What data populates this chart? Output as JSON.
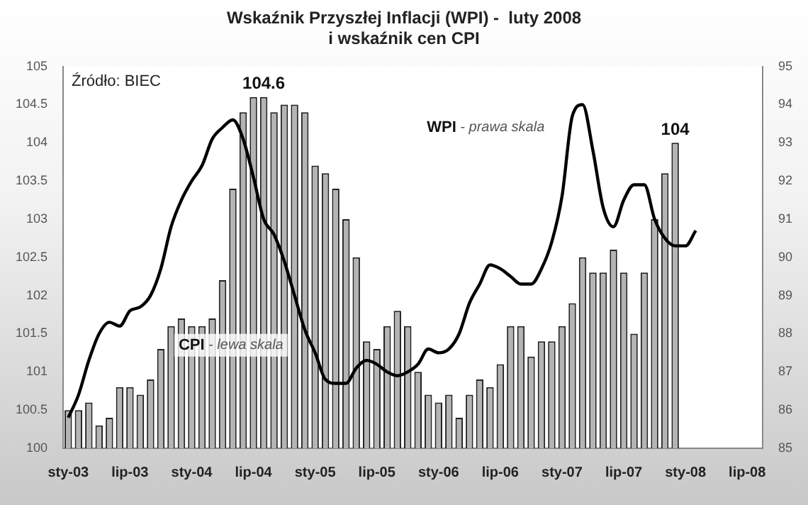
{
  "chart_data": {
    "type": "bar",
    "title": "Wskaźnik Przyszłej Inflacji (WPI) -  luty 2008\ni wskaźnik cen CPI",
    "categories": [
      "sty-03",
      null,
      null,
      null,
      null,
      null,
      "lip-03",
      null,
      null,
      null,
      null,
      null,
      "sty-04",
      null,
      null,
      null,
      null,
      null,
      "lip-04",
      null,
      null,
      null,
      null,
      null,
      "sty-05",
      null,
      null,
      null,
      null,
      null,
      "lip-05",
      null,
      null,
      null,
      null,
      null,
      "sty-06",
      null,
      null,
      null,
      null,
      null,
      "lip-06",
      null,
      null,
      null,
      null,
      null,
      "sty-07",
      null,
      null,
      null,
      null,
      null,
      "lip-07",
      null,
      null,
      null,
      null,
      null,
      "sty-08",
      null,
      null,
      null,
      null,
      null,
      "lip-08",
      null
    ],
    "series": [
      {
        "name": "CPI - lewa skala",
        "color": "#b4b4b4",
        "values": [
          100.5,
          100.5,
          100.6,
          100.3,
          100.4,
          100.8,
          100.8,
          100.7,
          100.9,
          101.3,
          101.6,
          101.7,
          101.6,
          101.6,
          101.7,
          102.2,
          103.4,
          104.4,
          104.6,
          104.6,
          104.4,
          104.5,
          104.5,
          104.4,
          103.7,
          103.6,
          103.4,
          103.0,
          102.5,
          101.4,
          101.3,
          101.6,
          101.8,
          101.6,
          101.0,
          100.7,
          100.6,
          100.7,
          100.4,
          100.7,
          100.9,
          100.8,
          101.1,
          101.6,
          101.6,
          101.2,
          101.4,
          101.4,
          101.6,
          101.9,
          102.5,
          102.3,
          102.3,
          102.6,
          102.3,
          101.5,
          102.3,
          103.0,
          103.6,
          104.0,
          null,
          null,
          null,
          null,
          null,
          null,
          null,
          null
        ],
        "value_labels": [
          null,
          null,
          null,
          null,
          null,
          null,
          null,
          null,
          null,
          null,
          null,
          null,
          null,
          null,
          null,
          null,
          null,
          null,
          null,
          "104.6",
          null,
          null,
          null,
          null,
          null,
          null,
          null,
          null,
          null,
          null,
          null,
          null,
          null,
          null,
          null,
          null,
          null,
          null,
          null,
          null,
          null,
          null,
          null,
          null,
          null,
          null,
          null,
          null,
          null,
          null,
          null,
          null,
          null,
          null,
          null,
          null,
          null,
          null,
          null,
          "104",
          null,
          null,
          null,
          null,
          null,
          null,
          null,
          null
        ]
      },
      {
        "name": "WPI - prawa skala",
        "type": "line",
        "axis": "y2",
        "color": "#000000",
        "values": [
          85.8,
          86.4,
          87.3,
          88.0,
          88.3,
          88.2,
          88.6,
          88.7,
          89.0,
          89.7,
          90.8,
          91.5,
          92.0,
          92.4,
          93.1,
          93.4,
          93.6,
          93.1,
          92.1,
          91.0,
          90.6,
          89.9,
          89.0,
          88.1,
          87.5,
          86.8,
          86.7,
          86.7,
          87.1,
          87.3,
          87.2,
          87.0,
          86.9,
          87.0,
          87.2,
          87.6,
          87.5,
          87.6,
          88.0,
          88.8,
          89.3,
          89.8,
          89.7,
          89.5,
          89.3,
          89.3,
          89.7,
          90.4,
          91.6,
          93.7,
          94.0,
          92.8,
          91.3,
          90.8,
          91.5,
          91.9,
          91.9,
          91.0,
          90.5,
          90.3,
          90.3,
          90.7,
          null,
          null,
          null,
          null,
          null,
          null
        ]
      }
    ],
    "ylim": [
      100,
      105
    ],
    "yticks": [
      100,
      100.5,
      101,
      101.5,
      102,
      102.5,
      103,
      103.5,
      104,
      104.5,
      105
    ],
    "y2lim": [
      85,
      95
    ],
    "y2ticks": [
      85,
      86,
      87,
      88,
      89,
      90,
      91,
      92,
      93,
      94,
      95
    ],
    "annotations": [
      "Źródło: BIEC"
    ],
    "grid": false,
    "legend": false,
    "marker": "none"
  }
}
